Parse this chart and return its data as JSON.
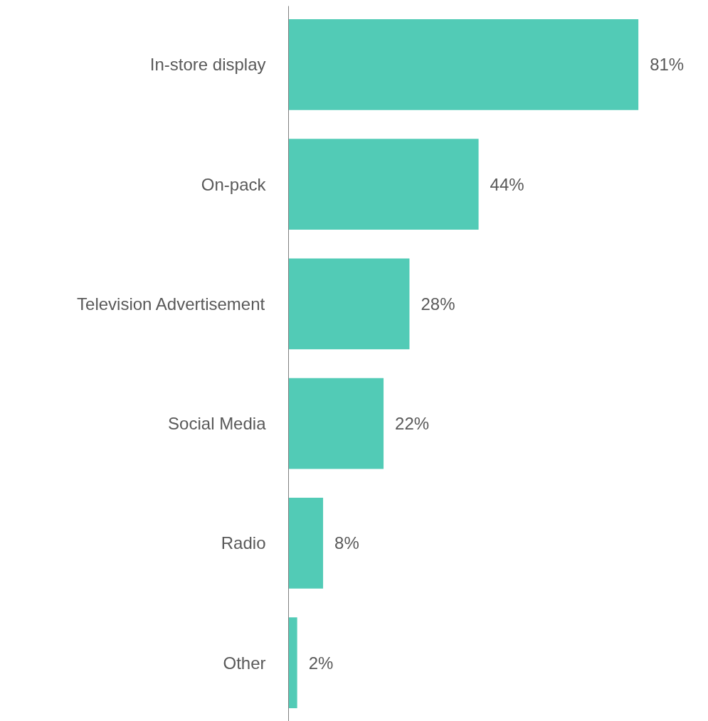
{
  "chart_data": {
    "type": "bar",
    "orientation": "horizontal",
    "categories": [
      "In-store display",
      "On-pack",
      "Television Advertisement",
      "Social Media",
      "Radio",
      "Other"
    ],
    "values": [
      81,
      44,
      28,
      22,
      8,
      2
    ],
    "value_labels": [
      "81%",
      "44%",
      "28%",
      "22%",
      "8%",
      "2%"
    ],
    "color": "#52cbb6",
    "grid": false
  }
}
